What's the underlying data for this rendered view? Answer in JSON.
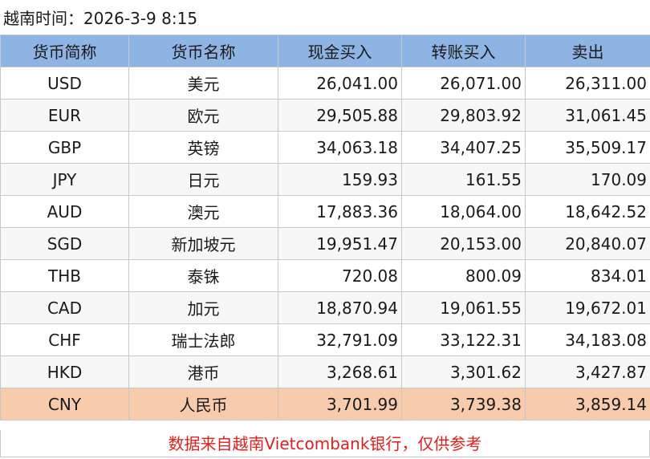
{
  "title": "越南时间：2026-3-9 8:15",
  "headers": {
    "code": "货币简称",
    "name": "货币名称",
    "cash_buy": "现金买入",
    "transfer_buy": "转账买入",
    "sell": "卖出"
  },
  "rows": [
    {
      "code": "USD",
      "name": "美元",
      "cash_buy": "26,041.00",
      "transfer_buy": "26,071.00",
      "sell": "26,311.00"
    },
    {
      "code": "EUR",
      "name": "欧元",
      "cash_buy": "29,505.88",
      "transfer_buy": "29,803.92",
      "sell": "31,061.45"
    },
    {
      "code": "GBP",
      "name": "英镑",
      "cash_buy": "34,063.18",
      "transfer_buy": "34,407.25",
      "sell": "35,509.17"
    },
    {
      "code": "JPY",
      "name": "日元",
      "cash_buy": "159.93",
      "transfer_buy": "161.55",
      "sell": "170.09"
    },
    {
      "code": "AUD",
      "name": "澳元",
      "cash_buy": "17,883.36",
      "transfer_buy": "18,064.00",
      "sell": "18,642.52"
    },
    {
      "code": "SGD",
      "name": "新加坡元",
      "cash_buy": "19,951.47",
      "transfer_buy": "20,153.00",
      "sell": "20,840.07"
    },
    {
      "code": "THB",
      "name": "泰铢",
      "cash_buy": "720.08",
      "transfer_buy": "800.09",
      "sell": "834.01"
    },
    {
      "code": "CAD",
      "name": "加元",
      "cash_buy": "18,870.94",
      "transfer_buy": "19,061.55",
      "sell": "19,672.01"
    },
    {
      "code": "CHF",
      "name": "瑞士法郎",
      "cash_buy": "32,791.09",
      "transfer_buy": "33,122.31",
      "sell": "34,183.08"
    },
    {
      "code": "HKD",
      "name": "港币",
      "cash_buy": "3,268.61",
      "transfer_buy": "3,301.62",
      "sell": "3,427.87"
    },
    {
      "code": "CNY",
      "name": "人民币",
      "cash_buy": "3,701.99",
      "transfer_buy": "3,739.38",
      "sell": "3,859.14"
    }
  ],
  "footer_note": "数据来自越南Vietcombank银行，仅供参考",
  "colors": {
    "header_bg": "#8db4e3",
    "highlight_row_bg": "#f8cbad",
    "footer_text": "#e0201c"
  }
}
